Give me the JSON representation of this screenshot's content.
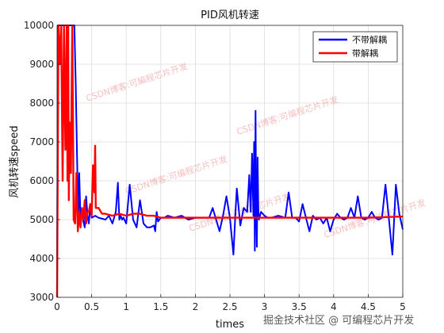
{
  "chart_data": {
    "type": "line",
    "title": "PID风机转速",
    "xlabel": "times",
    "ylabel": "风机转速speed",
    "xlim": [
      0,
      5
    ],
    "ylim": [
      3000,
      10000
    ],
    "xticks": [
      "0",
      "0.5",
      "1",
      "1.5",
      "2",
      "2.5",
      "3",
      "3.5",
      "4",
      "4.5",
      "5"
    ],
    "yticks": [
      "3000",
      "4000",
      "5000",
      "6000",
      "7000",
      "8000",
      "9000",
      "10000"
    ],
    "grid": true,
    "legend_position": "top-right",
    "series": [
      {
        "name": "不带解耦",
        "color": "#0000ff",
        "x": [
          0,
          0.01,
          0.03,
          0.1,
          0.15,
          0.2,
          0.25,
          0.27,
          0.29,
          0.3,
          0.31,
          0.32,
          0.34,
          0.36,
          0.38,
          0.4,
          0.42,
          0.44,
          0.46,
          0.48,
          0.5,
          0.55,
          0.6,
          0.7,
          0.75,
          0.8,
          0.85,
          0.88,
          0.9,
          0.92,
          0.94,
          0.96,
          1.0,
          1.05,
          1.1,
          1.15,
          1.2,
          1.25,
          1.3,
          1.35,
          1.4,
          1.42,
          1.44,
          1.46,
          1.5,
          1.55,
          1.6,
          1.7,
          1.8,
          1.9,
          2.0,
          2.1,
          2.2,
          2.25,
          2.3,
          2.35,
          2.4,
          2.45,
          2.5,
          2.55,
          2.58,
          2.6,
          2.65,
          2.7,
          2.75,
          2.78,
          2.8,
          2.82,
          2.84,
          2.85,
          2.86,
          2.87,
          2.88,
          2.89,
          2.9,
          2.91,
          2.92,
          2.95,
          3.0,
          3.05,
          3.1,
          3.2,
          3.3,
          3.35,
          3.4,
          3.45,
          3.5,
          3.55,
          3.6,
          3.65,
          3.7,
          3.75,
          3.8,
          3.85,
          3.9,
          3.95,
          4.0,
          4.05,
          4.1,
          4.15,
          4.2,
          4.25,
          4.3,
          4.35,
          4.4,
          4.45,
          4.5,
          4.55,
          4.6,
          4.65,
          4.7,
          4.75,
          4.8,
          4.85,
          4.9,
          4.95,
          5.0
        ],
        "y": [
          3000,
          10000,
          10000,
          10000,
          10000,
          10000,
          10000,
          8500,
          6500,
          5500,
          5200,
          6200,
          5000,
          5300,
          4950,
          4800,
          5600,
          5100,
          4900,
          5400,
          5050,
          5100,
          5050,
          5000,
          5100,
          4900,
          5200,
          5950,
          5000,
          5100,
          5000,
          5050,
          4900,
          5900,
          5000,
          4800,
          5500,
          4900,
          4800,
          4800,
          4850,
          4700,
          5200,
          4950,
          5050,
          5050,
          5100,
          5050,
          5100,
          5000,
          5050,
          5050,
          5050,
          5300,
          5000,
          4700,
          5100,
          5600,
          5050,
          4100,
          5200,
          5800,
          4850,
          5300,
          5200,
          6150,
          5200,
          6700,
          5100,
          7000,
          4200,
          7800,
          5300,
          4300,
          6600,
          5300,
          5000,
          5200,
          5100,
          5050,
          5050,
          5100,
          5050,
          5700,
          5050,
          5050,
          4950,
          5400,
          5050,
          4700,
          5100,
          5000,
          5050,
          4900,
          5050,
          4700,
          5000,
          5150,
          5050,
          5000,
          5050,
          5300,
          5050,
          5600,
          5050,
          5000,
          5050,
          5200,
          5050,
          5000,
          5050,
          5900,
          5000,
          4100,
          5900,
          5150,
          4750
        ]
      },
      {
        "name": "带解耦",
        "color": "#ff0000",
        "x": [
          0,
          0.02,
          0.04,
          0.06,
          0.08,
          0.1,
          0.12,
          0.14,
          0.15,
          0.16,
          0.17,
          0.18,
          0.2,
          0.22,
          0.24,
          0.26,
          0.28,
          0.3,
          0.32,
          0.34,
          0.36,
          0.38,
          0.4,
          0.42,
          0.44,
          0.46,
          0.48,
          0.5,
          0.52,
          0.54,
          0.55,
          0.56,
          0.58,
          0.6,
          0.65,
          0.7,
          0.8,
          0.9,
          1.0,
          1.1,
          1.2,
          1.3,
          1.4,
          1.5,
          1.7,
          2.0,
          2.5,
          3.0,
          3.5,
          4.0,
          4.5,
          5.0
        ],
        "y": [
          3000,
          10000,
          9000,
          10000,
          6000,
          10000,
          6800,
          10000,
          6000,
          10000,
          5500,
          7500,
          6200,
          10000,
          5000,
          4900,
          6200,
          4700,
          5200,
          4800,
          5300,
          5000,
          5500,
          4900,
          5200,
          5200,
          5400,
          5100,
          6400,
          5700,
          6900,
          5300,
          5300,
          5300,
          5150,
          5150,
          5100,
          5150,
          5100,
          5150,
          5150,
          5100,
          5100,
          5050,
          5050,
          5050,
          5050,
          5050,
          5050,
          5050,
          5050,
          5080
        ]
      }
    ]
  },
  "watermarks": [
    "CSDN博客:可編程芯片开发",
    "CSDN博客:可编程芯片开发",
    "CSDN博客:可编程芯片开发",
    "CSDN博客:可编程芯片开发",
    "CSDN博客:可编程芯片开发"
  ],
  "corner_watermark": "掘金技术社区 @ 可编程芯片开发"
}
